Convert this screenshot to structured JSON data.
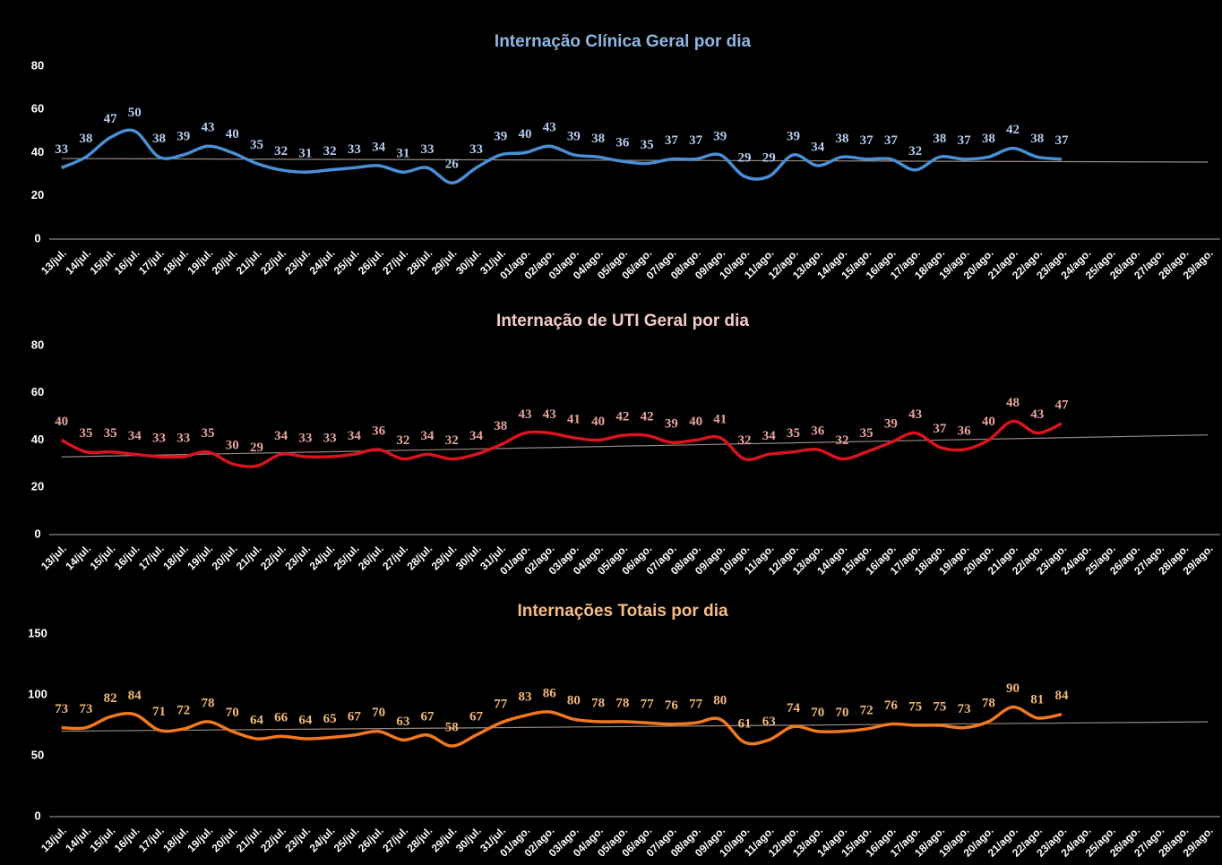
{
  "chart_data": [
    {
      "type": "line",
      "title": "Internação Clínica Geral por dia",
      "categories": [
        "13/jul.",
        "14/jul.",
        "15/jul.",
        "16/jul.",
        "17/jul.",
        "18/jul.",
        "19/jul.",
        "20/jul.",
        "21/jul.",
        "22/jul.",
        "23/jul.",
        "24/jul.",
        "25/jul.",
        "26/jul.",
        "27/jul.",
        "28/jul.",
        "29/jul.",
        "30/jul.",
        "31/jul.",
        "01/ago.",
        "02/ago.",
        "03/ago.",
        "04/ago.",
        "05/ago.",
        "06/ago.",
        "07/ago.",
        "08/ago.",
        "09/ago.",
        "10/ago.",
        "11/ago.",
        "12/ago.",
        "13/ago.",
        "14/ago.",
        "15/ago.",
        "16/ago.",
        "17/ago.",
        "18/ago.",
        "19/ago.",
        "20/ago.",
        "21/ago.",
        "22/ago.",
        "23/ago.",
        "24/ago.",
        "25/ago.",
        "26/ago.",
        "27/ago.",
        "28/ago.",
        "29/ago."
      ],
      "values": [
        33,
        38,
        47,
        50,
        38,
        39,
        43,
        40,
        35,
        32,
        31,
        32,
        33,
        34,
        31,
        33,
        26,
        33,
        39,
        40,
        43,
        39,
        38,
        36,
        35,
        37,
        37,
        39,
        29,
        29,
        39,
        34,
        38,
        37,
        37,
        32,
        38,
        37,
        38,
        42,
        38,
        37,
        null,
        null,
        null,
        null,
        null,
        null
      ],
      "color": "#4a8fd6",
      "label_color": "#b3cdef",
      "title_color": "#8fb6e6",
      "ylim": [
        0,
        80
      ],
      "yticks": [
        0,
        20,
        40,
        60,
        80
      ],
      "trendline": true
    },
    {
      "type": "line",
      "title": "Internação de UTI Geral por dia",
      "categories": [
        "13/jul.",
        "14/jul.",
        "15/jul.",
        "16/jul.",
        "17/jul.",
        "18/jul.",
        "19/jul.",
        "20/jul.",
        "21/jul.",
        "22/jul.",
        "23/jul.",
        "24/jul.",
        "25/jul.",
        "26/jul.",
        "27/jul.",
        "28/jul.",
        "29/jul.",
        "30/jul.",
        "31/jul.",
        "01/ago.",
        "02/ago.",
        "03/ago.",
        "04/ago.",
        "05/ago.",
        "06/ago.",
        "07/ago.",
        "08/ago.",
        "09/ago.",
        "10/ago.",
        "11/ago.",
        "12/ago.",
        "13/ago.",
        "14/ago.",
        "15/ago.",
        "16/ago.",
        "17/ago.",
        "18/ago.",
        "19/ago.",
        "20/ago.",
        "21/ago.",
        "22/ago.",
        "23/ago.",
        "24/ago.",
        "25/ago.",
        "26/ago.",
        "27/ago.",
        "28/ago.",
        "29/ago."
      ],
      "values": [
        40,
        35,
        35,
        34,
        33,
        33,
        35,
        30,
        29,
        34,
        33,
        33,
        34,
        36,
        32,
        34,
        32,
        34,
        38,
        43,
        43,
        41,
        40,
        42,
        42,
        39,
        40,
        41,
        32,
        34,
        35,
        36,
        32,
        35,
        39,
        43,
        37,
        36,
        40,
        48,
        43,
        47,
        null,
        null,
        null,
        null,
        null,
        null
      ],
      "color": "#d9141e",
      "label_color": "#e8a49d",
      "title_color": "#f2cbc6",
      "ylim": [
        0,
        80
      ],
      "yticks": [
        0,
        20,
        40,
        60,
        80
      ],
      "trendline": true
    },
    {
      "type": "line",
      "title": "Internações Totais por dia",
      "categories": [
        "13/jul.",
        "14/jul.",
        "15/jul.",
        "16/jul.",
        "17/jul.",
        "18/jul.",
        "19/jul.",
        "20/jul.",
        "21/jul.",
        "22/jul.",
        "23/jul.",
        "24/jul.",
        "25/jul.",
        "26/jul.",
        "27/jul.",
        "28/jul.",
        "29/jul.",
        "30/jul.",
        "31/jul.",
        "01/ago.",
        "02/ago.",
        "03/ago.",
        "04/ago.",
        "05/ago.",
        "06/ago.",
        "07/ago.",
        "08/ago.",
        "09/ago.",
        "10/ago.",
        "11/ago.",
        "12/ago.",
        "13/ago.",
        "14/ago.",
        "15/ago.",
        "16/ago.",
        "17/ago.",
        "18/ago.",
        "19/ago.",
        "20/ago.",
        "21/ago.",
        "22/ago.",
        "23/ago.",
        "24/ago.",
        "25/ago.",
        "26/ago.",
        "27/ago.",
        "28/ago.",
        "29/ago."
      ],
      "values": [
        73,
        73,
        82,
        84,
        71,
        72,
        78,
        70,
        64,
        66,
        64,
        65,
        67,
        70,
        63,
        67,
        58,
        67,
        77,
        83,
        86,
        80,
        78,
        78,
        77,
        76,
        77,
        80,
        61,
        63,
        74,
        70,
        70,
        72,
        76,
        75,
        75,
        73,
        78,
        90,
        81,
        84,
        null,
        null,
        null,
        null,
        null,
        null
      ],
      "color": "#f07820",
      "label_color": "#f2b878",
      "title_color": "#f5bd82",
      "ylim": [
        0,
        150
      ],
      "yticks": [
        0,
        50,
        100,
        150
      ],
      "trendline": true
    }
  ]
}
